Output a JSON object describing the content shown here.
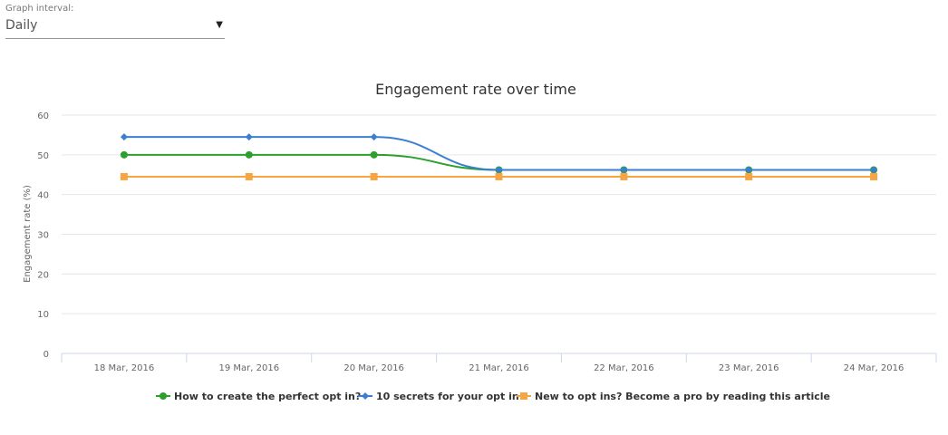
{
  "interval": {
    "label": "Graph interval:",
    "value": "Daily",
    "arrow_icon": "caret-down-icon"
  },
  "chart_data": {
    "type": "line",
    "title": "Engagement rate over time",
    "ylabel": "Engagement rate (%)",
    "xlabel": "",
    "ylim": [
      0,
      60
    ],
    "yticks": [
      "0",
      "10",
      "20",
      "30",
      "40",
      "50",
      "60"
    ],
    "grid": true,
    "legend_placement": "bottom",
    "categories": [
      "18 Mar, 2016",
      "19 Mar, 2016",
      "20 Mar, 2016",
      "21 Mar, 2016",
      "22 Mar, 2016",
      "23 Mar, 2016",
      "24 Mar, 2016"
    ],
    "series": [
      {
        "name": "How to create the perfect opt in?",
        "color": "#2ca02c",
        "marker": "circle",
        "values": [
          50,
          50,
          50,
          46.2,
          46.2,
          46.2,
          46.2
        ]
      },
      {
        "name": "10 secrets for your opt in",
        "color": "#3a7fd0",
        "marker": "diamond",
        "values": [
          54.5,
          54.5,
          54.5,
          46.2,
          46.2,
          46.2,
          46.2
        ]
      },
      {
        "name": "New to opt ins? Become a pro by reading this article",
        "color": "#f7a540",
        "marker": "square",
        "values": [
          44.5,
          44.5,
          44.5,
          44.5,
          44.5,
          44.5,
          44.5
        ]
      }
    ]
  }
}
